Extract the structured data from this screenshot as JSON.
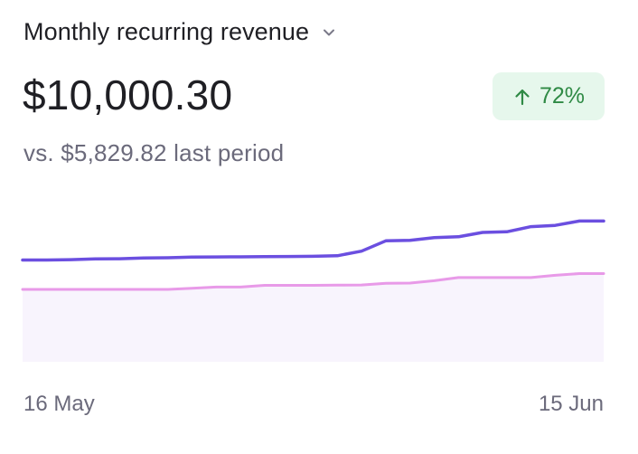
{
  "header": {
    "metric_label": "Monthly recurring revenue",
    "dropdown_icon": "chevron-down-icon"
  },
  "summary": {
    "value": "$10,000.30",
    "change_icon": "arrow-up-icon",
    "change_percent": "72%",
    "comparison": "vs. $5,829.82 last period"
  },
  "colors": {
    "current_series": "#6b4fe0",
    "previous_series": "#e89ae8",
    "area_fill": "#f8f4fd",
    "badge_bg": "#e6f7ec",
    "badge_text": "#2f8a45"
  },
  "chart_data": {
    "type": "line",
    "x_start_label": "16 May",
    "x_end_label": "15 Jun",
    "ylim": [
      0,
      10000
    ],
    "grid": false,
    "series": [
      {
        "values": [
          6430,
          6430,
          6450,
          6500,
          6510,
          6560,
          6570,
          6610,
          6620,
          6630,
          6640,
          6650,
          6660,
          6700,
          6990,
          7640,
          7670,
          7840,
          7900,
          8170,
          8210,
          8540,
          8620,
          8890,
          8890
        ]
      },
      {
        "values": [
          4570,
          4570,
          4570,
          4570,
          4570,
          4570,
          4570,
          4640,
          4720,
          4720,
          4830,
          4830,
          4830,
          4840,
          4850,
          4960,
          4970,
          5120,
          5320,
          5320,
          5320,
          5320,
          5460,
          5570,
          5570
        ]
      }
    ]
  }
}
